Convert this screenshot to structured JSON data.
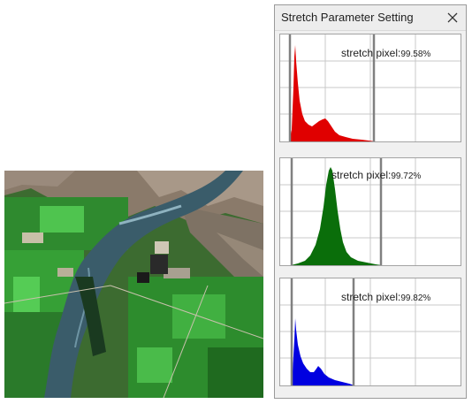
{
  "panel": {
    "title": "Stretch Parameter Setting",
    "close_icon": "close-icon"
  },
  "histograms": [
    {
      "channel": "red",
      "color": "#e00000",
      "label": "stretch pixel:",
      "value": "99.58%"
    },
    {
      "channel": "green",
      "color": "#0a6e0a",
      "label": "stretch pixel:",
      "value": "99.72%"
    },
    {
      "channel": "blue",
      "color": "#0000e0",
      "label": "stretch pixel:",
      "value": "99.82%"
    }
  ],
  "colors": {
    "panel_bg": "#f0f0f0",
    "histogram_grid": "#c8c8c8",
    "stretch_marker": "#808080"
  }
}
